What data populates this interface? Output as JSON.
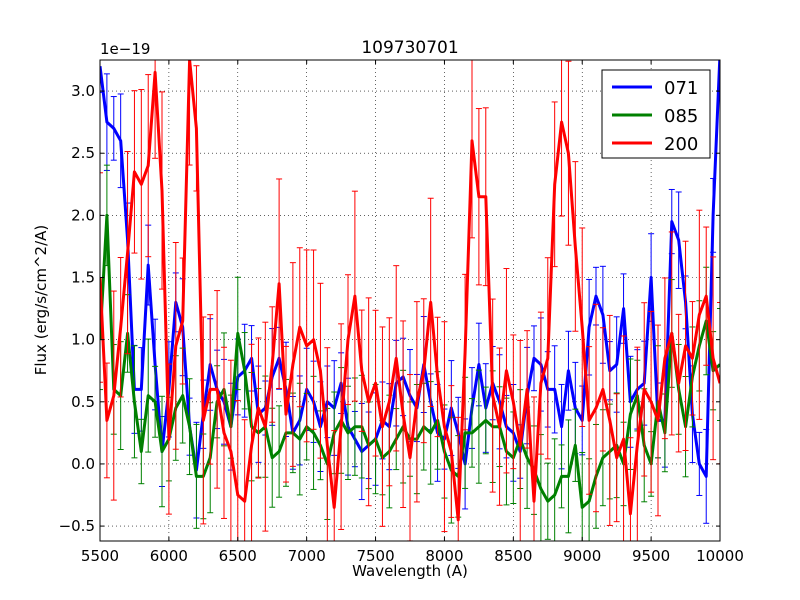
{
  "chart_data": {
    "type": "line",
    "title": "109730701",
    "xlabel": "Wavelength (A)",
    "ylabel": "Flux (erg/s/cm^2/A)",
    "y_offset_label": "1e−19",
    "xlim": [
      5500,
      10000
    ],
    "ylim": [
      -0.62,
      3.25
    ],
    "xticks": [
      5500,
      6000,
      6500,
      7000,
      7500,
      8000,
      8500,
      9000,
      9500,
      10000
    ],
    "xtick_labels": [
      "5500",
      "6000",
      "6500",
      "7000",
      "7500",
      "8000",
      "8500",
      "9000",
      "9500",
      "10000"
    ],
    "yticks": [
      -0.5,
      0.0,
      0.5,
      1.0,
      1.5,
      2.0,
      2.5,
      3.0
    ],
    "ytick_labels": [
      "−0.5",
      "0.0",
      "0.5",
      "1.0",
      "1.5",
      "2.0",
      "2.5",
      "3.0"
    ],
    "grid": true,
    "legend_position": "top-right",
    "x": [
      5500,
      5550,
      5600,
      5650,
      5700,
      5750,
      5800,
      5850,
      5900,
      5950,
      6000,
      6050,
      6100,
      6150,
      6200,
      6250,
      6300,
      6350,
      6400,
      6450,
      6500,
      6550,
      6600,
      6650,
      6700,
      6750,
      6800,
      6850,
      6900,
      6950,
      7000,
      7050,
      7100,
      7150,
      7200,
      7250,
      7300,
      7350,
      7400,
      7450,
      7500,
      7550,
      7600,
      7650,
      7700,
      7750,
      7800,
      7850,
      7900,
      7950,
      8000,
      8050,
      8100,
      8150,
      8200,
      8250,
      8300,
      8350,
      8400,
      8450,
      8500,
      8550,
      8600,
      8650,
      8700,
      8750,
      8800,
      8850,
      8900,
      8950,
      9000,
      9050,
      9100,
      9150,
      9200,
      9250,
      9300,
      9350,
      9400,
      9450,
      9500,
      9550,
      9600,
      9650,
      9700,
      9750,
      9800,
      9850,
      9900,
      9950,
      10000
    ],
    "series": [
      {
        "name": "071",
        "color": "#0000ff",
        "values": [
          3.2,
          2.75,
          2.7,
          2.6,
          1.8,
          0.6,
          0.6,
          1.6,
          0.8,
          0.1,
          0.6,
          1.3,
          1.1,
          0.3,
          -0.05,
          0.4,
          0.8,
          0.6,
          0.5,
          0.3,
          0.7,
          0.75,
          0.85,
          0.4,
          0.45,
          0.7,
          0.85,
          0.6,
          0.25,
          0.35,
          0.6,
          0.5,
          0.3,
          0.5,
          0.45,
          0.65,
          0.3,
          0.2,
          0.1,
          0.15,
          0.2,
          0.35,
          0.3,
          0.65,
          0.7,
          0.55,
          0.45,
          0.8,
          0.5,
          0.25,
          0.2,
          0.45,
          0.25,
          0.0,
          0.45,
          0.8,
          0.45,
          0.65,
          0.5,
          0.3,
          0.25,
          0.1,
          0.55,
          0.85,
          0.8,
          0.6,
          0.6,
          0.3,
          0.75,
          0.45,
          0.35,
          1.1,
          1.35,
          1.2,
          0.75,
          0.8,
          1.25,
          0.5,
          0.6,
          0.65,
          1.5,
          0.35,
          0.35,
          1.95,
          1.8,
          1.3,
          0.4,
          0.0,
          -0.1,
          2.0,
          3.3
        ]
      },
      {
        "name": "085",
        "color": "#008000",
        "values": [
          1.0,
          2.0,
          0.6,
          0.55,
          1.05,
          0.5,
          0.1,
          0.55,
          0.5,
          0.1,
          0.2,
          0.45,
          0.55,
          0.3,
          -0.1,
          -0.1,
          0.05,
          0.5,
          0.6,
          0.3,
          1.05,
          0.75,
          0.3,
          0.25,
          0.3,
          0.05,
          0.1,
          0.25,
          0.25,
          0.2,
          0.3,
          0.25,
          0.15,
          0.0,
          0.25,
          0.35,
          0.25,
          0.3,
          0.3,
          0.15,
          0.2,
          0.05,
          0.1,
          0.2,
          0.3,
          0.2,
          0.2,
          0.3,
          0.25,
          0.35,
          0.1,
          -0.05,
          -0.1,
          0.25,
          0.25,
          0.3,
          0.35,
          0.3,
          0.3,
          0.1,
          0.05,
          0.2,
          0.05,
          -0.05,
          -0.2,
          -0.3,
          -0.25,
          -0.1,
          -0.1,
          0.15,
          -0.35,
          -0.3,
          -0.1,
          0.05,
          0.1,
          0.15,
          0.0,
          0.4,
          0.55,
          0.15,
          0.0,
          0.5,
          0.25,
          1.05,
          0.6,
          0.3,
          0.7,
          0.95,
          1.15,
          0.75,
          0.8
        ]
      },
      {
        "name": "200",
        "color": "#ff0000",
        "values": [
          1.5,
          0.35,
          0.55,
          1.1,
          1.7,
          2.35,
          2.25,
          2.4,
          3.15,
          2.2,
          0.2,
          0.95,
          1.15,
          3.25,
          2.7,
          0.35,
          0.6,
          0.6,
          0.25,
          0.1,
          -0.25,
          -0.3,
          0.15,
          0.45,
          0.3,
          0.8,
          1.45,
          0.4,
          0.8,
          1.1,
          0.95,
          1.0,
          0.75,
          0.15,
          -0.35,
          0.3,
          1.0,
          1.35,
          0.75,
          0.5,
          0.65,
          0.3,
          0.5,
          0.85,
          0.4,
          0.05,
          0.5,
          0.75,
          1.3,
          0.7,
          0.3,
          0.1,
          -0.45,
          0.9,
          2.6,
          2.15,
          2.15,
          0.55,
          0.3,
          0.75,
          0.5,
          0.15,
          0.6,
          -0.3,
          0.65,
          0.85,
          2.25,
          2.75,
          2.5,
          1.75,
          1.1,
          0.35,
          0.45,
          0.6,
          0.35,
          0.05,
          0.2,
          -0.4,
          0.15,
          0.6,
          0.5,
          0.35,
          0.85,
          1.05,
          0.65,
          0.95,
          0.85,
          1.2,
          1.35,
          0.85,
          0.65
        ]
      }
    ]
  }
}
